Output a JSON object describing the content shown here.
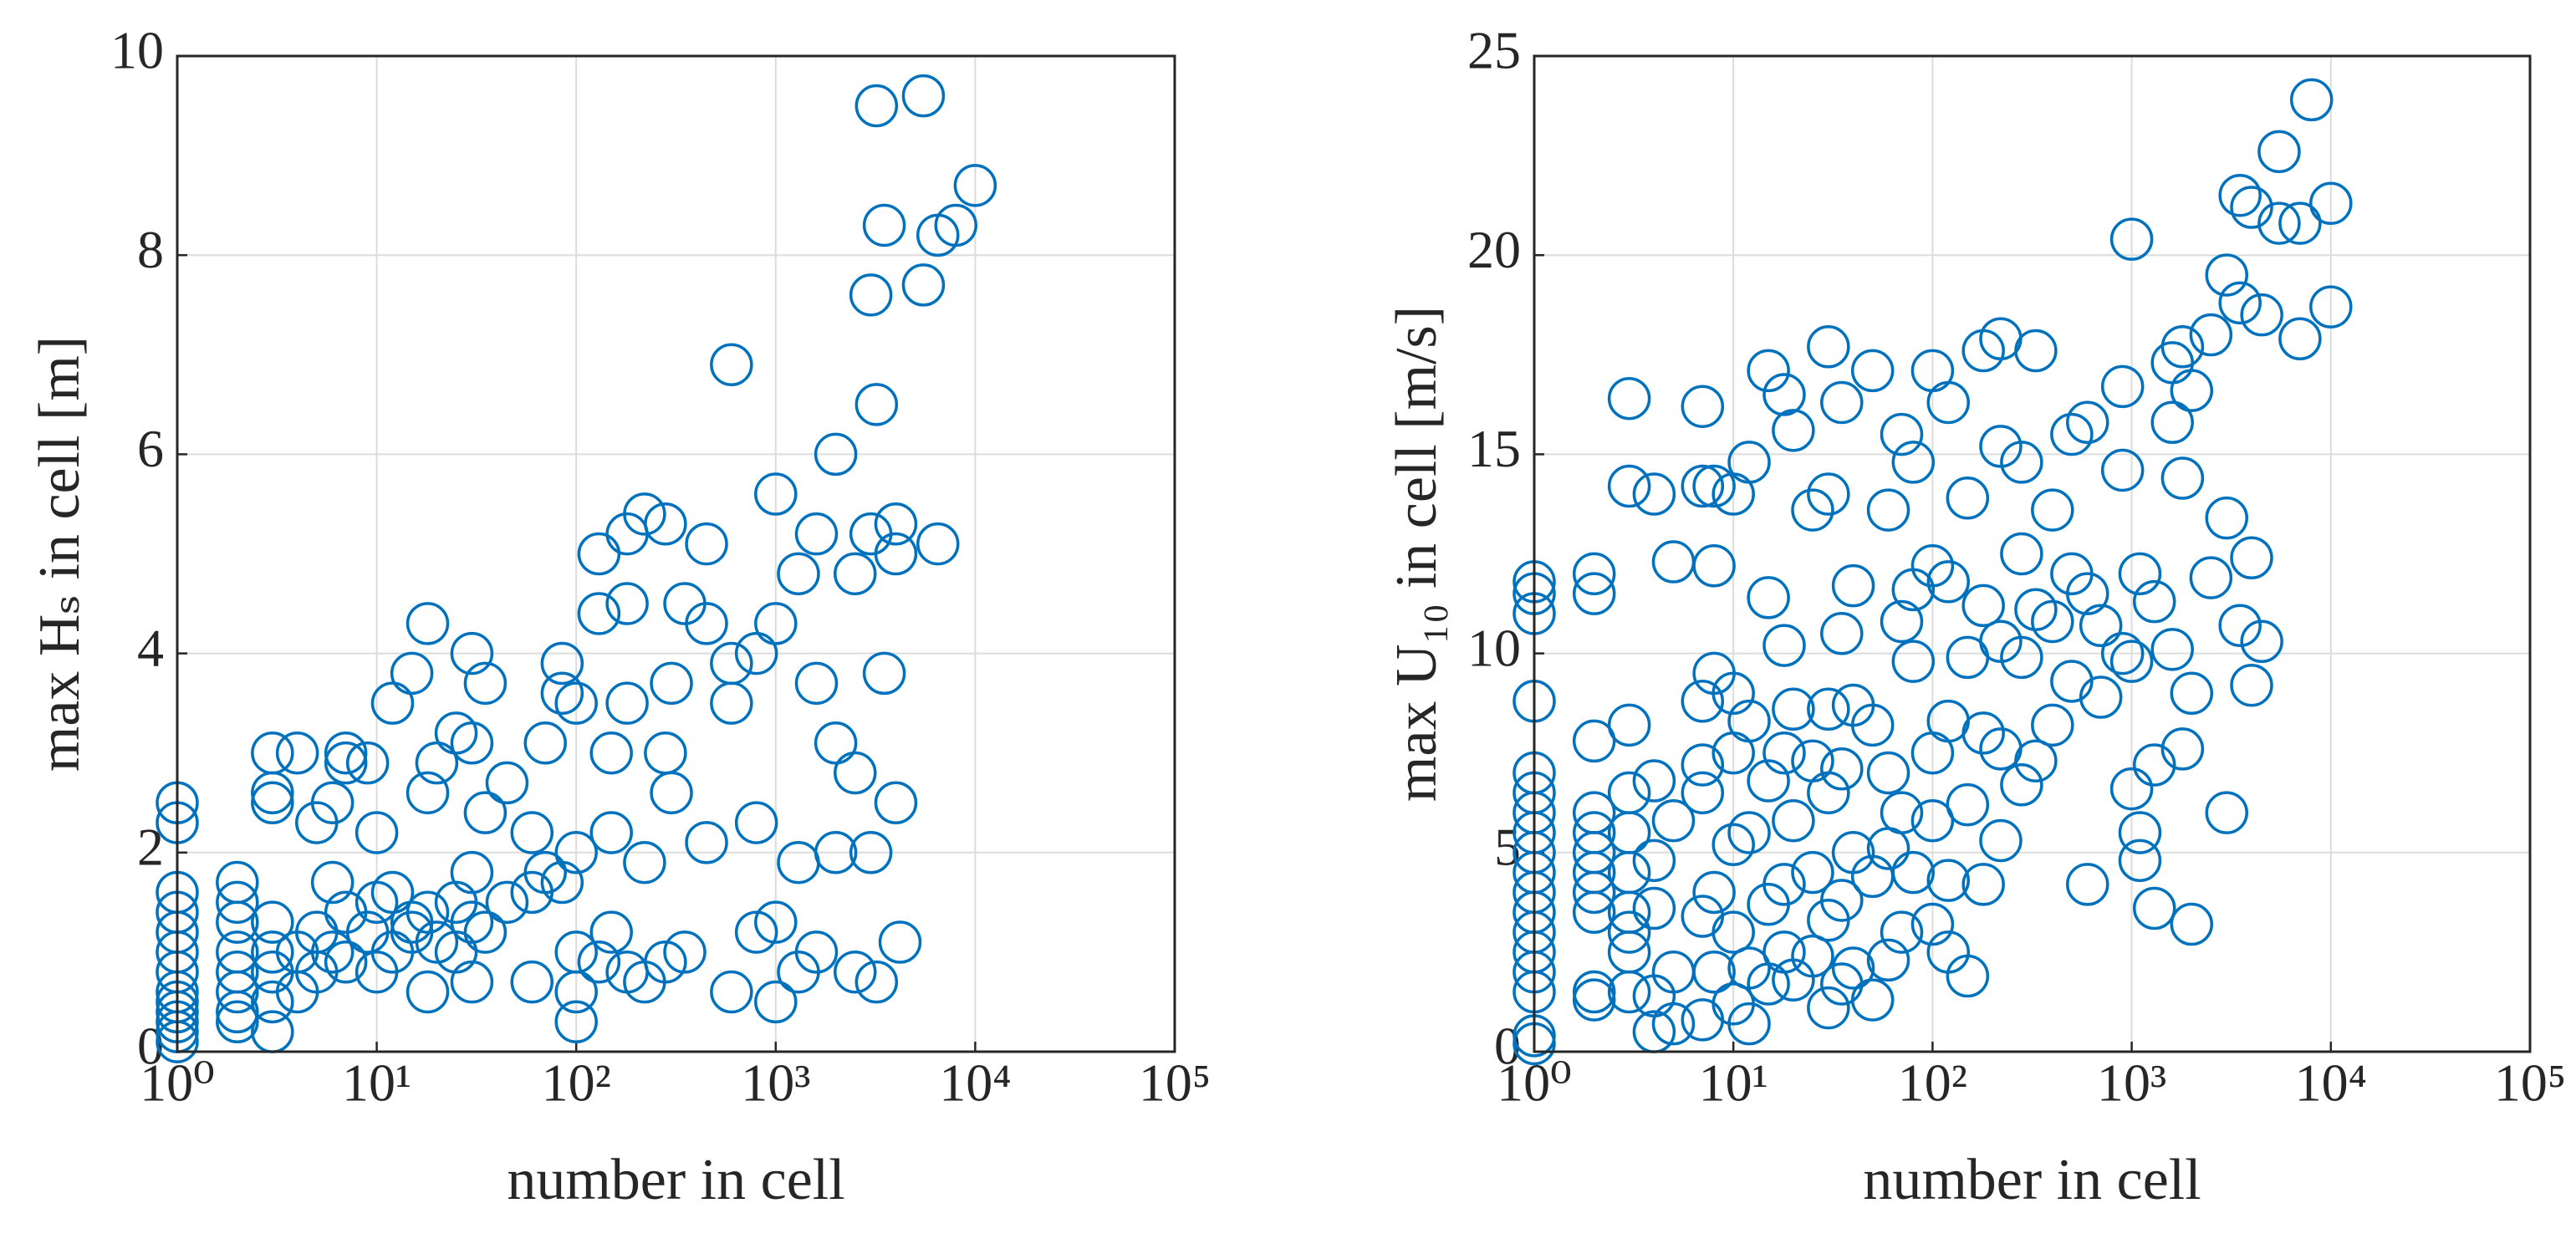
{
  "chart_data": [
    {
      "type": "scatter",
      "xlabel": "number in cell",
      "ylabel": "max Hₛ in cell [m]",
      "xlog": true,
      "grid": true,
      "color": "#0072bd",
      "xlim": [
        1,
        100000
      ],
      "xticks": [
        {
          "value": 1,
          "label": "10⁰"
        },
        {
          "value": 10,
          "label": "10¹"
        },
        {
          "value": 100,
          "label": "10²"
        },
        {
          "value": 1000,
          "label": "10³"
        },
        {
          "value": 10000,
          "label": "10⁴"
        },
        {
          "value": 100000,
          "label": "10⁵"
        }
      ],
      "ylim": [
        0,
        10
      ],
      "yticks": [
        0,
        2,
        4,
        6,
        8,
        10
      ],
      "x": [
        1,
        1,
        1,
        1,
        1,
        1,
        1,
        1,
        1,
        1,
        1,
        1,
        1,
        2,
        2,
        2,
        2,
        2,
        2,
        2,
        2,
        3,
        3,
        3,
        3,
        3,
        3,
        3,
        3,
        4,
        4,
        4,
        5,
        5,
        5,
        6,
        6,
        6,
        7,
        7,
        7,
        7,
        9,
        9,
        10,
        10,
        10,
        12,
        12,
        12,
        15,
        15,
        15,
        18,
        18,
        18,
        18,
        20,
        20,
        25,
        25,
        25,
        30,
        30,
        30,
        30,
        30,
        35,
        35,
        35,
        45,
        45,
        60,
        60,
        60,
        70,
        70,
        85,
        85,
        85,
        100,
        100,
        100,
        100,
        100,
        130,
        130,
        130,
        150,
        150,
        150,
        180,
        180,
        180,
        180,
        220,
        220,
        220,
        280,
        280,
        280,
        300,
        300,
        350,
        350,
        450,
        450,
        450,
        600,
        600,
        600,
        600,
        800,
        800,
        800,
        1000,
        1000,
        1000,
        1000,
        1300,
        1300,
        1300,
        1600,
        1600,
        1600,
        2000,
        2000,
        2000,
        2500,
        2500,
        2500,
        3000,
        3000,
        3000,
        3200,
        3200,
        3200,
        3500,
        3500,
        4000,
        4000,
        4000,
        4200,
        5500,
        5500,
        6500,
        6500,
        8000,
        10000
      ],
      "values": [
        0.1,
        0.2,
        0.3,
        0.4,
        0.5,
        0.6,
        0.8,
        1.0,
        1.2,
        1.4,
        1.6,
        2.3,
        2.5,
        0.3,
        0.4,
        0.6,
        0.8,
        1.0,
        1.3,
        1.5,
        1.7,
        0.2,
        0.5,
        0.8,
        1.0,
        1.3,
        2.5,
        2.6,
        3.0,
        0.6,
        1.0,
        3.0,
        0.8,
        1.2,
        2.3,
        1.0,
        1.7,
        2.5,
        0.9,
        1.4,
        2.9,
        3.0,
        1.2,
        2.9,
        0.8,
        1.5,
        2.2,
        1.0,
        1.6,
        3.5,
        1.2,
        1.3,
        3.8,
        0.6,
        1.4,
        2.6,
        4.3,
        1.1,
        2.9,
        1.0,
        1.5,
        3.2,
        0.7,
        1.3,
        1.8,
        3.1,
        4.0,
        1.2,
        2.4,
        3.7,
        1.5,
        2.7,
        0.7,
        1.6,
        2.2,
        3.1,
        1.8,
        1.7,
        3.6,
        3.9,
        0.3,
        0.6,
        1.0,
        2.0,
        3.5,
        0.9,
        4.4,
        5.0,
        1.2,
        2.2,
        3.0,
        0.8,
        3.5,
        4.5,
        5.2,
        0.7,
        1.9,
        5.4,
        0.9,
        3.0,
        5.3,
        2.6,
        3.7,
        1.0,
        4.5,
        2.1,
        4.3,
        5.1,
        0.6,
        3.5,
        3.9,
        6.9,
        1.2,
        2.3,
        4.0,
        0.5,
        1.3,
        4.3,
        5.6,
        0.8,
        1.9,
        4.8,
        1.0,
        3.7,
        5.2,
        2.0,
        3.1,
        6.0,
        0.8,
        2.8,
        4.8,
        2.0,
        5.2,
        7.6,
        0.7,
        6.5,
        9.5,
        3.8,
        8.3,
        2.5,
        5.0,
        5.3,
        1.1,
        9.6,
        7.7,
        8.2,
        5.1,
        8.3,
        8.7
      ]
    },
    {
      "type": "scatter",
      "xlabel": "number in cell",
      "ylabel": "max U₁₀ in cell [m/s]",
      "xlog": true,
      "grid": true,
      "color": "#0072bd",
      "xlim": [
        1,
        100000
      ],
      "xticks": [
        {
          "value": 1,
          "label": "10⁰"
        },
        {
          "value": 10,
          "label": "10¹"
        },
        {
          "value": 100,
          "label": "10²"
        },
        {
          "value": 1000,
          "label": "10³"
        },
        {
          "value": 10000,
          "label": "10⁴"
        },
        {
          "value": 100000,
          "label": "10⁵"
        }
      ],
      "ylim": [
        0,
        25
      ],
      "yticks": [
        0,
        5,
        10,
        15,
        20,
        25
      ],
      "x": [
        1,
        1,
        1,
        1,
        1,
        1,
        1,
        1,
        1,
        1,
        1,
        1,
        1,
        1,
        1,
        1,
        1,
        1,
        2,
        2,
        2,
        2,
        2,
        2,
        2,
        2,
        2,
        2,
        2,
        3,
        3,
        3,
        3,
        3,
        3,
        3,
        3,
        3,
        3,
        4,
        4,
        4,
        4,
        4,
        4,
        5,
        5,
        5,
        5,
        7,
        7,
        7,
        7,
        7,
        7,
        7,
        8,
        8,
        8,
        8,
        8,
        10,
        10,
        10,
        10,
        10,
        10,
        12,
        12,
        12,
        12,
        12,
        15,
        15,
        15,
        15,
        15,
        18,
        18,
        18,
        18,
        18,
        20,
        20,
        20,
        20,
        25,
        25,
        25,
        25,
        30,
        30,
        30,
        30,
        30,
        30,
        35,
        35,
        35,
        35,
        35,
        40,
        40,
        40,
        40,
        50,
        50,
        50,
        50,
        60,
        60,
        60,
        60,
        70,
        70,
        70,
        70,
        80,
        80,
        80,
        80,
        100,
        100,
        100,
        100,
        100,
        120,
        120,
        120,
        120,
        120,
        150,
        150,
        150,
        150,
        180,
        180,
        180,
        180,
        220,
        220,
        220,
        220,
        220,
        280,
        280,
        280,
        280,
        330,
        330,
        330,
        400,
        400,
        400,
        500,
        500,
        500,
        600,
        600,
        600,
        700,
        700,
        900,
        900,
        900,
        1000,
        1000,
        1000,
        1100,
        1100,
        1100,
        1300,
        1300,
        1300,
        1600,
        1600,
        1600,
        1800,
        1800,
        1800,
        2000,
        2000,
        2000,
        2500,
        2500,
        3000,
        3000,
        3000,
        3500,
        3500,
        3500,
        4000,
        4000,
        4000,
        4500,
        4500,
        5500,
        5500,
        7000,
        7000,
        8000,
        10000,
        10000
      ],
      "values": [
        0.2,
        0.4,
        1.5,
        2,
        2.5,
        3,
        3.5,
        4,
        4.5,
        5,
        5.5,
        6,
        6.5,
        7,
        8.8,
        11,
        11.5,
        11.8,
        1.3,
        1.5,
        3.5,
        4,
        4.5,
        5,
        5.5,
        6,
        7.8,
        11.5,
        12,
        1.5,
        2.5,
        3,
        3.5,
        4.5,
        5.5,
        6.5,
        8.2,
        14.2,
        16.4,
        0.5,
        1.4,
        3.6,
        4.8,
        6.8,
        14,
        0.7,
        2.0,
        5.8,
        12.3,
        0.8,
        3.4,
        6.5,
        7.2,
        8.8,
        14.2,
        16.2,
        2,
        4,
        9.5,
        14.2,
        12.2,
        1.2,
        3,
        5.2,
        7.5,
        9,
        14,
        0.7,
        2.1,
        5.5,
        8.3,
        14.8,
        1.7,
        3.7,
        6.8,
        11.4,
        17.1,
        2.5,
        4.2,
        7.5,
        10.2,
        16.5,
        1.8,
        5.8,
        8.6,
        15.6,
        2.4,
        4.5,
        7.3,
        13.6,
        1.1,
        3.3,
        6.5,
        8.6,
        14,
        17.7,
        1.7,
        3.8,
        7.1,
        10.5,
        16.3,
        2.1,
        5,
        8.7,
        11.7,
        1.3,
        4.4,
        8.2,
        17.1,
        2.3,
        5.1,
        7,
        13.6,
        3,
        6,
        10.8,
        15.5,
        4.5,
        9.8,
        14.8,
        11.6,
        3.2,
        5.8,
        7.5,
        12.2,
        17.1,
        2.5,
        4.3,
        8.3,
        11.8,
        16.3,
        1.9,
        6.2,
        9.9,
        13.9,
        4.2,
        8,
        11.2,
        17.6,
        5.3,
        7.6,
        10.3,
        15.2,
        17.9,
        6.7,
        9.9,
        12.5,
        14.8,
        7.3,
        11.1,
        17.6,
        8.2,
        10.8,
        13.6,
        9.3,
        12,
        15.5,
        4.2,
        11.5,
        15.8,
        8.9,
        10.7,
        10,
        14.6,
        16.7,
        6.6,
        9.8,
        20.4,
        4.8,
        5.5,
        12,
        3.6,
        7.2,
        11.3,
        10.1,
        15.8,
        17.3,
        7.6,
        14.4,
        17.7,
        3.2,
        9,
        16.6,
        11.9,
        18,
        6,
        13.4,
        19.5,
        10.7,
        18.8,
        21.5,
        9.2,
        12.4,
        21.2,
        10.3,
        18.5,
        22.6,
        20.8,
        17.9,
        20.8,
        23.9,
        18.7,
        21.3
      ]
    }
  ]
}
